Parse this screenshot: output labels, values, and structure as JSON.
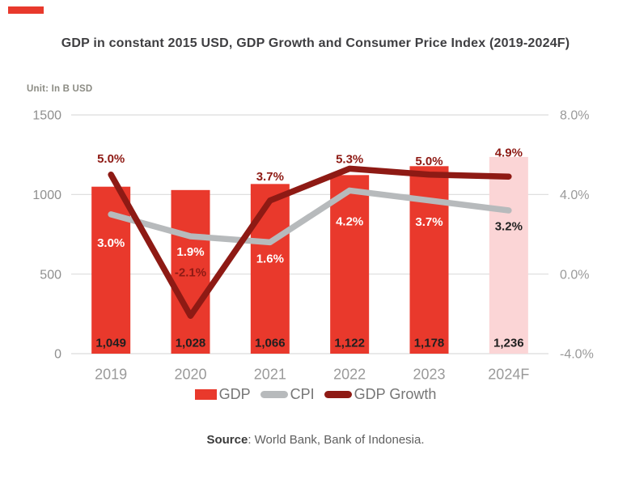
{
  "brand_bar": {
    "color": "#e8392c"
  },
  "title": "GDP in constant 2015 USD, GDP Growth and Consumer Price Index (2019-2024F)",
  "unit_label": "Unit: In B USD",
  "source": {
    "label": "Source",
    "text": ": World Bank, Bank of Indonesia."
  },
  "legend": {
    "items": [
      {
        "label": "GDP",
        "swatch": "rect",
        "color": "#e9392c"
      },
      {
        "label": "CPI",
        "swatch": "line",
        "color": "#b7babc"
      },
      {
        "label": "GDP Growth",
        "swatch": "line",
        "color": "#8e1a14"
      }
    ]
  },
  "chart_data": {
    "type": "bar+line",
    "title": "GDP in constant 2015 USD, GDP Growth and Consumer Price Index (2019-2024F)",
    "unit": "In B USD",
    "categories": [
      "2019",
      "2020",
      "2021",
      "2022",
      "2023",
      "2024F"
    ],
    "bar_series": {
      "name": "GDP",
      "axis": "left",
      "values": [
        1049,
        1028,
        1066,
        1122,
        1178,
        1236
      ],
      "value_labels": [
        "1,049",
        "1,028",
        "1,066",
        "1,122",
        "1,178",
        "1,236"
      ],
      "bar_colors": [
        "#e9392c",
        "#e9392c",
        "#e9392c",
        "#e9392c",
        "#e9392c",
        "#fbd5d6"
      ],
      "value_label_color": "#1f1f1f"
    },
    "line_series": [
      {
        "name": "CPI",
        "axis": "right",
        "color": "#b7babc",
        "values": [
          3.0,
          1.9,
          1.6,
          4.2,
          3.7,
          3.2
        ],
        "point_labels": [
          "3.0%",
          "1.9%",
          "1.6%",
          "4.2%",
          "3.7%",
          "3.2%"
        ],
        "label_colors": [
          "#ffffff",
          "#ffffff",
          "#ffffff",
          "#ffffff",
          "#ffffff",
          "#222222"
        ],
        "label_dy": [
          35,
          19,
          20,
          38,
          26,
          19
        ]
      },
      {
        "name": "GDP Growth",
        "axis": "right",
        "color": "#8e1a14",
        "values": [
          5.0,
          -2.1,
          3.7,
          5.3,
          5.0,
          4.9
        ],
        "point_labels": [
          "5.0%",
          "-2.1%",
          "3.7%",
          "5.3%",
          "5.0%",
          "4.9%"
        ],
        "label_colors": [
          "#8e1a14",
          "#8e1a14",
          "#8e1a14",
          "#8e1a14",
          "#8e1a14",
          "#8e1a14"
        ],
        "label_dy": [
          -20,
          -54,
          -30,
          -12,
          -17,
          -30
        ]
      }
    ],
    "left_axis": {
      "range": [
        0,
        1500
      ],
      "ticks": [
        0,
        500,
        1000,
        1500
      ],
      "tick_labels": [
        "0",
        "500",
        "1000",
        "1500"
      ]
    },
    "right_axis": {
      "range": [
        -4,
        8
      ],
      "ticks": [
        -4,
        0,
        4,
        8
      ],
      "tick_labels": [
        "-4.0%",
        "0.0%",
        "4.0%",
        "8.0%"
      ]
    },
    "grid": true,
    "legend_position": "bottom"
  }
}
